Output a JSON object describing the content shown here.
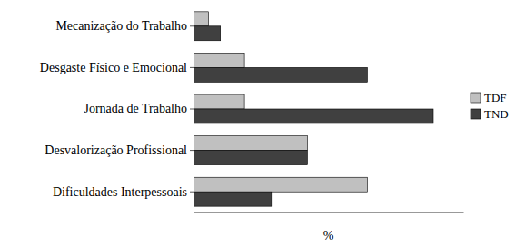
{
  "chart_data": {
    "type": "bar",
    "orientation": "horizontal",
    "categories": [
      "Mecanização do Trabalho",
      "Desgaste Físico e Emocional",
      "Jornada de Trabalho",
      "Desvalorização Profissional",
      "Dificuldades Interpessoais"
    ],
    "series": [
      {
        "name": "TDF",
        "color": "#c0c0c0",
        "values": [
          2.5,
          8.5,
          8.5,
          19,
          29
        ]
      },
      {
        "name": "TND",
        "color": "#404040",
        "values": [
          4.5,
          29,
          40,
          19,
          13
        ]
      }
    ],
    "xlabel": "%",
    "xlim": [
      0,
      45
    ],
    "tick_labels": "y",
    "legend": "right"
  }
}
